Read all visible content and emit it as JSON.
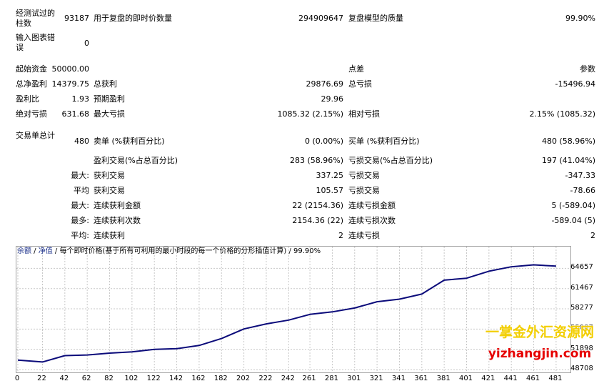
{
  "stats": {
    "bars_tested_label": "经测试过的柱数",
    "bars_tested_value": "93187",
    "ticks_label": "用于复盘的即时价数量",
    "ticks_value": "294909647",
    "quality_label": "复盘模型的质量",
    "quality_value": "99.90%",
    "chart_errors_label": "输入图表错误",
    "chart_errors_value": "0",
    "initial_deposit_label": "起始资金",
    "initial_deposit_value": "50000.00",
    "spread_label": "点差",
    "spread_value": "参数",
    "net_profit_label": "总净盈利",
    "net_profit_value": "14379.75",
    "gross_profit_label": "总获利",
    "gross_profit_value": "29876.69",
    "gross_loss_label": "总亏损",
    "gross_loss_value": "-15496.94",
    "profit_factor_label": "盈利比",
    "profit_factor_value": "1.93",
    "expected_payoff_label": "预期盈利",
    "expected_payoff_value": "29.96",
    "abs_drawdown_label": "绝对亏损",
    "abs_drawdown_value": "631.68",
    "max_drawdown_label": "最大亏损",
    "max_drawdown_value": "1085.32 (2.15%)",
    "rel_drawdown_label": "相对亏损",
    "rel_drawdown_value": "2.15% (1085.32)",
    "total_trades_label": "交易单总计",
    "total_trades_value": "480",
    "short_label": "卖单 (%获利百分比)",
    "short_value": "0 (0.00%)",
    "long_label": "买单 (%获利百分比)",
    "long_value": "480 (58.96%)",
    "profit_trades_label": "盈利交易(%占总百分比)",
    "profit_trades_value": "283 (58.96%)",
    "loss_trades_label": "亏损交易(%占总百分比)",
    "loss_trades_value": "197 (41.04%)",
    "largest_prefix": "最大:",
    "largest_profit_label": "获利交易",
    "largest_profit_value": "337.25",
    "largest_loss_label": "亏损交易",
    "largest_loss_value": "-347.33",
    "average_prefix": "平均",
    "average_profit_label": "获利交易",
    "average_profit_value": "105.57",
    "average_loss_label": "亏损交易",
    "average_loss_value": "-78.66",
    "max_cons_prefix": "最大:",
    "max_cons_wins_label": "连续获利金额",
    "max_cons_wins_value": "22 (2154.36)",
    "max_cons_losses_label": "连续亏损金额",
    "max_cons_losses_value": "5 (-589.04)",
    "max_cons_amount_prefix": "最多:",
    "max_cons_profit_label": "连续获利次数",
    "max_cons_profit_value": "2154.36 (22)",
    "max_cons_loss_label": "连续亏损次数",
    "max_cons_loss_value": "-589.04 (5)",
    "avg_cons_prefix": "平均:",
    "avg_cons_wins_label": "连续获利",
    "avg_cons_wins_value": "2",
    "avg_cons_losses_label": "连续亏损",
    "avg_cons_losses_value": "2"
  },
  "chart_header": {
    "balance_link": "余额",
    "separator1": " / ",
    "equity_link": "净值",
    "separator2": " / ",
    "description": "每个即时价格(基于所有可利用的最小时段的每一个价格的分形插值计算)",
    "separator3": " / ",
    "quality": "99.90%"
  },
  "chart_data": {
    "type": "line",
    "series": [],
    "x": [
      0,
      22,
      42,
      62,
      82,
      102,
      122,
      142,
      162,
      182,
      202,
      222,
      242,
      261,
      281,
      301,
      321,
      341,
      361,
      381,
      401,
      421,
      441,
      461,
      481
    ],
    "y": [
      50200,
      49900,
      50900,
      51000,
      51300,
      51500,
      51900,
      52000,
      52500,
      53600,
      55100,
      55900,
      56500,
      57400,
      57800,
      58400,
      59400,
      59800,
      60600,
      62800,
      63100,
      64200,
      64900,
      65200,
      65000
    ],
    "xticks": [
      "0",
      "22",
      "42",
      "62",
      "82",
      "102",
      "122",
      "142",
      "162",
      "182",
      "202",
      "222",
      "242",
      "261",
      "281",
      "301",
      "321",
      "341",
      "361",
      "381",
      "401",
      "421",
      "441",
      "461",
      "481"
    ],
    "yticks": [
      "64657",
      "61467",
      "58277",
      "55087",
      "51898",
      "48708"
    ],
    "ylim": [
      48708,
      66500
    ],
    "xlim": [
      0,
      490
    ],
    "grid": true,
    "line_color": "#0b0b7a",
    "grid_color": "#c8c8c8"
  },
  "watermark": {
    "cn": "一掌金外汇资源网",
    "en": "yizhangjin.com"
  }
}
